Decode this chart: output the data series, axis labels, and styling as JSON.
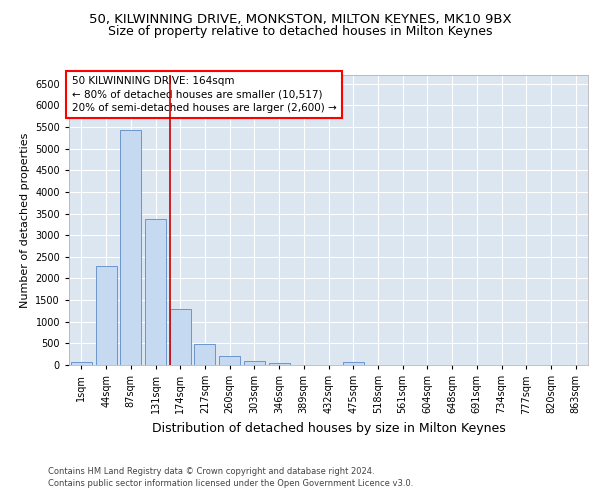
{
  "title1": "50, KILWINNING DRIVE, MONKSTON, MILTON KEYNES, MK10 9BX",
  "title2": "Size of property relative to detached houses in Milton Keynes",
  "xlabel": "Distribution of detached houses by size in Milton Keynes",
  "ylabel": "Number of detached properties",
  "footer1": "Contains HM Land Registry data © Crown copyright and database right 2024.",
  "footer2": "Contains public sector information licensed under the Open Government Licence v3.0.",
  "annotation_line1": "50 KILWINNING DRIVE: 164sqm",
  "annotation_line2": "← 80% of detached houses are smaller (10,517)",
  "annotation_line3": "20% of semi-detached houses are larger (2,600) →",
  "bar_color": "#c5d9f1",
  "bar_edgecolor": "#5b8ac6",
  "red_line_color": "#cc0000",
  "background_color": "#ffffff",
  "plot_bg_color": "#dce6f1",
  "grid_color": "#ffffff",
  "ylim": [
    0,
    6700
  ],
  "yticks": [
    0,
    500,
    1000,
    1500,
    2000,
    2500,
    3000,
    3500,
    4000,
    4500,
    5000,
    5500,
    6000,
    6500
  ],
  "categories": [
    "1sqm",
    "44sqm",
    "87sqm",
    "131sqm",
    "174sqm",
    "217sqm",
    "260sqm",
    "303sqm",
    "346sqm",
    "389sqm",
    "432sqm",
    "475sqm",
    "518sqm",
    "561sqm",
    "604sqm",
    "648sqm",
    "691sqm",
    "734sqm",
    "777sqm",
    "820sqm",
    "863sqm"
  ],
  "values": [
    70,
    2280,
    5420,
    3380,
    1300,
    475,
    210,
    100,
    55,
    0,
    0,
    65,
    0,
    0,
    0,
    0,
    0,
    0,
    0,
    0,
    0
  ],
  "title1_fontsize": 9.5,
  "title2_fontsize": 9,
  "annotation_fontsize": 7.5,
  "ylabel_fontsize": 8,
  "xlabel_fontsize": 9,
  "tick_fontsize": 7,
  "footer_fontsize": 6
}
